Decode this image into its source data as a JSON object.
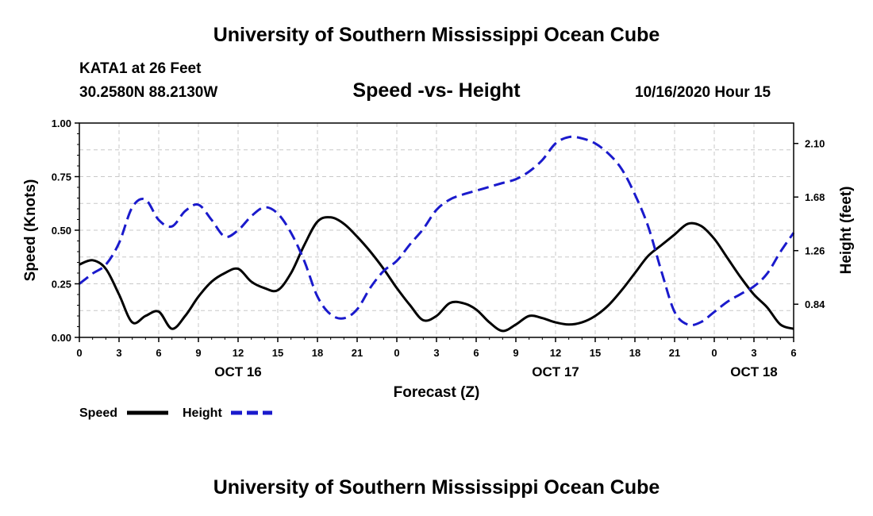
{
  "header": {
    "title": "University of Southern Mississippi Ocean Cube",
    "station": "KATA1 at 26 Feet",
    "coords": "30.2580N 88.2130W",
    "subtitle": "Speed -vs- Height",
    "datestamp": "10/16/2020 Hour 15"
  },
  "footer": {
    "title": "University of Southern Mississippi Ocean Cube"
  },
  "colors": {
    "speed": "#000000",
    "height": "#1a1acc",
    "grid": "#c8c8c8"
  },
  "chart_data": {
    "type": "line",
    "title": "Speed -vs- Height",
    "xlabel": "Forecast (Z)",
    "ylabel": "Speed (Knots)",
    "y2label": "Height (feet)",
    "x_range_hours": [
      0,
      54
    ],
    "ylim": [
      0,
      1.0
    ],
    "y2lim": [
      0.58,
      2.26
    ],
    "y_ticks": [
      0,
      0.25,
      0.5,
      0.75,
      1.0
    ],
    "y_tick_labels": [
      "0.00",
      "0.25",
      "0.50",
      "0.75",
      "1.00"
    ],
    "y2_ticks": [
      0.84,
      1.26,
      1.68,
      2.1
    ],
    "y2_tick_labels": [
      "0.84",
      "1.26",
      "1.68",
      "2.10"
    ],
    "x_ticks": [
      0,
      3,
      6,
      9,
      12,
      15,
      18,
      21,
      24,
      27,
      30,
      33,
      36,
      39,
      42,
      45,
      48,
      51,
      54
    ],
    "x_tick_labels": [
      "0",
      "3",
      "6",
      "9",
      "12",
      "15",
      "18",
      "21",
      "0",
      "3",
      "6",
      "9",
      "12",
      "15",
      "18",
      "21",
      "0",
      "3",
      "6"
    ],
    "day_labels": [
      {
        "label": "OCT 16",
        "hour": 12
      },
      {
        "label": "OCT 17",
        "hour": 36
      },
      {
        "label": "OCT 18",
        "hour": 51
      }
    ],
    "legend": [
      {
        "name": "Speed",
        "style": "solid"
      },
      {
        "name": "Height",
        "style": "dashed"
      }
    ],
    "series": [
      {
        "name": "Speed",
        "axis": "left",
        "style": "solid",
        "x": [
          0,
          1,
          2,
          3,
          4,
          5,
          6,
          7,
          8,
          9,
          10,
          11,
          12,
          13,
          14,
          15,
          16,
          17,
          18,
          19,
          20,
          21,
          22,
          23,
          24,
          25,
          26,
          27,
          28,
          29,
          30,
          31,
          32,
          33,
          34,
          35,
          36,
          37,
          38,
          39,
          40,
          41,
          42,
          43,
          44,
          45,
          46,
          47,
          48,
          49,
          50,
          51,
          52,
          53,
          54
        ],
        "values": [
          0.34,
          0.36,
          0.32,
          0.2,
          0.07,
          0.1,
          0.12,
          0.04,
          0.1,
          0.19,
          0.26,
          0.3,
          0.32,
          0.26,
          0.23,
          0.22,
          0.3,
          0.43,
          0.54,
          0.56,
          0.53,
          0.47,
          0.4,
          0.32,
          0.23,
          0.15,
          0.08,
          0.1,
          0.16,
          0.16,
          0.13,
          0.07,
          0.03,
          0.06,
          0.1,
          0.09,
          0.07,
          0.06,
          0.07,
          0.1,
          0.15,
          0.22,
          0.3,
          0.38,
          0.43,
          0.48,
          0.53,
          0.52,
          0.46,
          0.37,
          0.28,
          0.2,
          0.14,
          0.06,
          0.04
        ]
      },
      {
        "name": "Height",
        "axis": "right",
        "style": "dashed",
        "x": [
          0,
          1,
          2,
          3,
          4,
          5,
          6,
          7,
          8,
          9,
          10,
          11,
          12,
          13,
          14,
          15,
          16,
          17,
          18,
          19,
          20,
          21,
          22,
          23,
          24,
          25,
          26,
          27,
          28,
          29,
          30,
          31,
          32,
          33,
          34,
          35,
          36,
          37,
          38,
          39,
          40,
          41,
          42,
          43,
          44,
          45,
          46,
          47,
          48,
          49,
          50,
          51,
          52,
          53,
          54
        ],
        "values": [
          1.0,
          1.08,
          1.15,
          1.32,
          1.6,
          1.66,
          1.5,
          1.45,
          1.57,
          1.62,
          1.5,
          1.37,
          1.42,
          1.53,
          1.6,
          1.55,
          1.4,
          1.18,
          0.9,
          0.76,
          0.73,
          0.8,
          0.97,
          1.1,
          1.18,
          1.31,
          1.43,
          1.58,
          1.66,
          1.7,
          1.73,
          1.76,
          1.79,
          1.82,
          1.88,
          1.97,
          2.1,
          2.15,
          2.14,
          2.1,
          2.02,
          1.9,
          1.7,
          1.45,
          1.1,
          0.78,
          0.68,
          0.7,
          0.78,
          0.86,
          0.92,
          0.98,
          1.08,
          1.25,
          1.4
        ]
      }
    ]
  }
}
